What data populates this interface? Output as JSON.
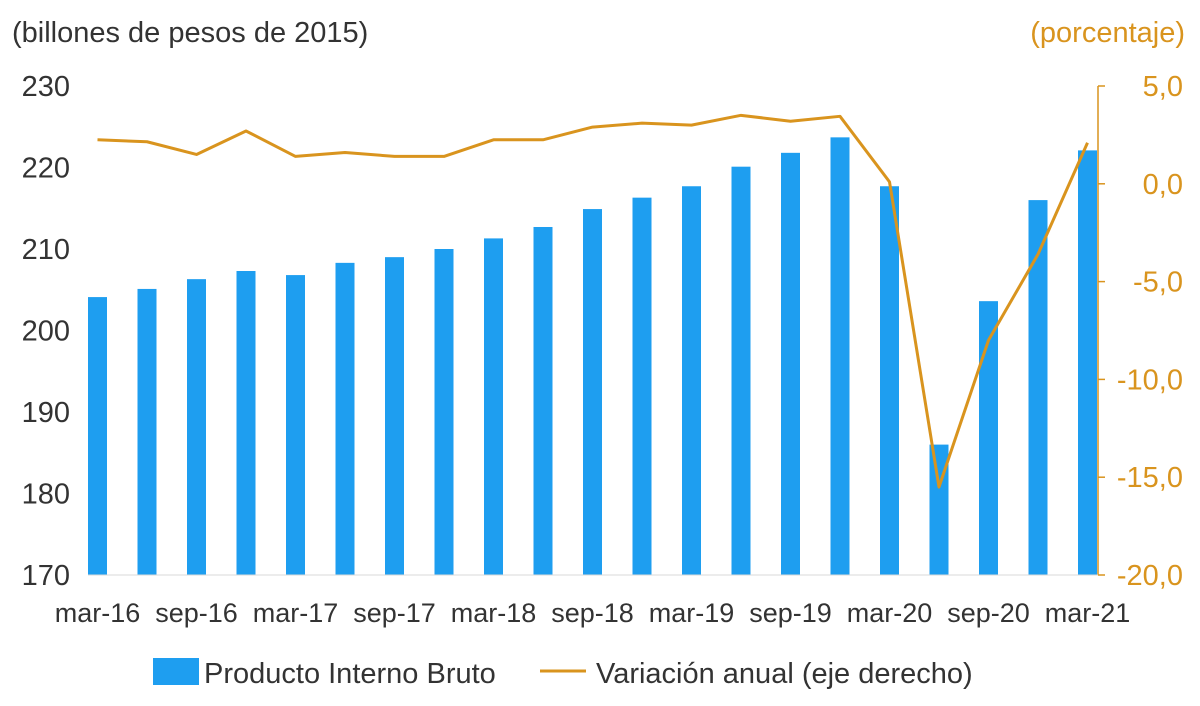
{
  "chart_data": {
    "type": "bar+line",
    "left_axis_title": "(billones de pesos de 2015)",
    "right_axis_title": "(porcentaje)",
    "categories": [
      "mar-16",
      "jun-16",
      "sep-16",
      "dic-16",
      "mar-17",
      "jun-17",
      "sep-17",
      "dic-17",
      "mar-18",
      "jun-18",
      "sep-18",
      "dic-18",
      "mar-19",
      "jun-19",
      "sep-19",
      "dic-19",
      "mar-20",
      "jun-20",
      "sep-20",
      "dic-20",
      "mar-21"
    ],
    "x_tick_labels": [
      "mar-16",
      "sep-16",
      "mar-17",
      "sep-17",
      "mar-18",
      "sep-18",
      "mar-19",
      "sep-19",
      "mar-20",
      "sep-20",
      "mar-21"
    ],
    "left_ylim": [
      170,
      230
    ],
    "left_ticks": [
      "170",
      "180",
      "190",
      "200",
      "210",
      "220",
      "230"
    ],
    "right_ylim": [
      -20,
      5
    ],
    "right_ticks": [
      "-20,0",
      "-15,0",
      "-10,0",
      "-5,0",
      "0,0",
      "5,0"
    ],
    "series": [
      {
        "name": "Producto Interno Bruto",
        "type": "bar",
        "axis": "left",
        "color": "#1E9EF0",
        "values": [
          204.1,
          205.1,
          206.3,
          207.3,
          206.8,
          208.3,
          209.0,
          210.0,
          211.3,
          212.7,
          214.9,
          216.3,
          217.7,
          220.1,
          221.8,
          223.7,
          217.7,
          186.0,
          203.6,
          216.0,
          222.1
        ]
      },
      {
        "name": "Variación anual (eje derecho)",
        "type": "line",
        "axis": "right",
        "color": "#D9941E",
        "values": [
          2.25,
          2.15,
          1.5,
          2.7,
          1.4,
          1.6,
          1.4,
          1.4,
          2.25,
          2.25,
          2.9,
          3.1,
          3.0,
          3.5,
          3.2,
          3.45,
          0.1,
          -15.5,
          -8.0,
          -3.6,
          2.1
        ]
      }
    ],
    "legend_position": "bottom",
    "grid": false
  }
}
